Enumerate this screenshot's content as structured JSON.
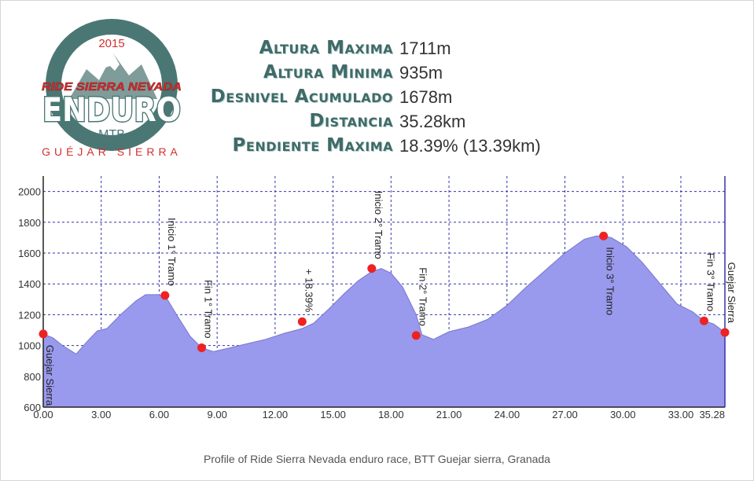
{
  "logo": {
    "year": "2015",
    "name_top": "RIDE SIERRA NEVADA",
    "name_main": "ENDURO",
    "name_sub": "MTB",
    "place": "GUÉJAR SIERRA"
  },
  "stats": [
    {
      "label": "Altura Maxima",
      "value": "1711m"
    },
    {
      "label": "Altura Minima",
      "value": "935m"
    },
    {
      "label": "Desnivel Acumulado",
      "value": "1678m"
    },
    {
      "label": "Distancia",
      "value": "35.28km"
    },
    {
      "label": "Pendiente Maxima",
      "value": "18.39% (13.39km)"
    }
  ],
  "caption": "Profile of Ride Sierra Nevada enduro race, BTT Guejar sierra, Granada",
  "colors": {
    "area_fill": "#9999ee",
    "area_stroke": "#7777cc",
    "marker": "#ee2222",
    "grid": "#3333aa",
    "label_title": "#3f6b68",
    "logo_ring": "#4a7774",
    "logo_red": "#d32f2f"
  },
  "chart_data": {
    "type": "area",
    "title": "",
    "xlabel": "",
    "ylabel": "",
    "xlim": [
      0,
      35.28
    ],
    "ylim": [
      600,
      2100
    ],
    "grid": true,
    "x_ticks": [
      0,
      3,
      6,
      9,
      12,
      15,
      18,
      21,
      24,
      27,
      30,
      33,
      35.28
    ],
    "x_tick_labels": [
      "0.00",
      "3.00",
      "6.00",
      "9.00",
      "12.00",
      "15.00",
      "18.00",
      "21.00",
      "24.00",
      "27.00",
      "30.00",
      "33.00",
      "35.28"
    ],
    "y_ticks": [
      600,
      800,
      1000,
      1200,
      1400,
      1600,
      1800,
      2000
    ],
    "y_tick_labels": [
      "600",
      "800",
      "1000",
      "1200",
      "1400",
      "1600",
      "1800",
      "2000"
    ],
    "series": [
      {
        "x": [
          0,
          0.5,
          1.0,
          1.7,
          2.3,
          2.8,
          3.3,
          4.0,
          4.8,
          5.3,
          5.9,
          6.3,
          6.9,
          7.6,
          8.2,
          8.8,
          9.5,
          10.5,
          11.5,
          12.5,
          13.4,
          14.0,
          14.8,
          15.6,
          16.3,
          17.0,
          17.5,
          18.0,
          18.6,
          19.3,
          19.6,
          20.2,
          21.0,
          22.0,
          23.0,
          24.0,
          25.0,
          26.0,
          27.0,
          28.0,
          28.6,
          29.0,
          29.4,
          30.2,
          31.0,
          32.0,
          32.8,
          33.6,
          34.2,
          34.7,
          35.28
        ],
        "y": [
          1075,
          1050,
          1000,
          945,
          1030,
          1095,
          1110,
          1200,
          1290,
          1330,
          1330,
          1325,
          1200,
          1060,
          985,
          960,
          980,
          1010,
          1040,
          1080,
          1110,
          1145,
          1240,
          1340,
          1420,
          1480,
          1500,
          1470,
          1380,
          1200,
          1070,
          1040,
          1090,
          1120,
          1170,
          1260,
          1380,
          1490,
          1600,
          1690,
          1710,
          1711,
          1700,
          1640,
          1540,
          1390,
          1270,
          1220,
          1160,
          1140,
          1085
        ]
      }
    ],
    "points": [
      {
        "x": 0.0,
        "y": 1075,
        "label": "Guejar Sierra",
        "dir": "down"
      },
      {
        "x": 6.3,
        "y": 1325,
        "label": "Inicio 1° Tramo",
        "dir": "up"
      },
      {
        "x": 8.2,
        "y": 985,
        "label": "Fin 1° Tramo",
        "dir": "up"
      },
      {
        "x": 13.4,
        "y": 1155,
        "label": "+ 18.39%",
        "dir": "up"
      },
      {
        "x": 17.0,
        "y": 1500,
        "label": "Inicio 2° Tramo",
        "dir": "up"
      },
      {
        "x": 19.3,
        "y": 1065,
        "label": "Fin 2° Tramo",
        "dir": "up"
      },
      {
        "x": 29.0,
        "y": 1711,
        "label": "Inicio 3° Tramo",
        "dir": "down"
      },
      {
        "x": 34.2,
        "y": 1160,
        "label": "Fin 3° Tramo",
        "dir": "up"
      },
      {
        "x": 35.28,
        "y": 1085,
        "label": "Guejar Sierra",
        "dir": "up"
      }
    ]
  }
}
